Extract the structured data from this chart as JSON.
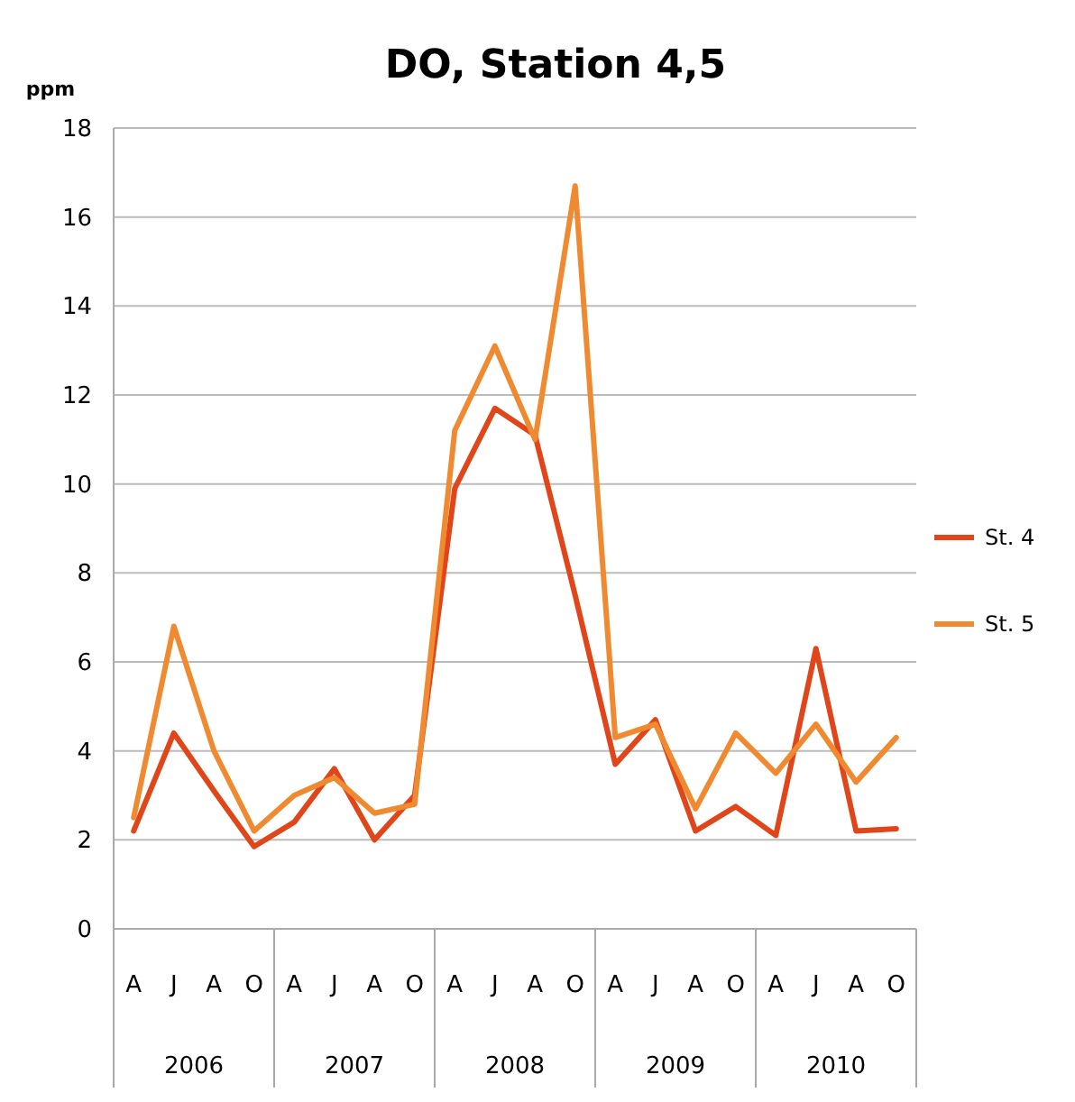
{
  "chart_data": {
    "type": "line",
    "title": "DO, Station 4,5",
    "ylabel": "ppm",
    "categories": [
      "A",
      "J",
      "A",
      "O",
      "A",
      "J",
      "A",
      "O",
      "A",
      "J",
      "A",
      "O",
      "A",
      "J",
      "A",
      "O",
      "A",
      "J",
      "A",
      "O"
    ],
    "annotations": [
      "2006",
      "2007",
      "2008",
      "2009",
      "2010"
    ],
    "series": [
      {
        "name": "St. 4",
        "color": "#e0461a",
        "values": [
          2.2,
          4.4,
          3.1,
          1.85,
          2.4,
          3.6,
          2.0,
          3.0,
          9.9,
          11.7,
          11.1,
          7.5,
          3.7,
          4.7,
          2.2,
          2.75,
          2.1,
          6.3,
          2.2,
          2.25
        ]
      },
      {
        "name": "St. 5",
        "color": "#f08a30",
        "values": [
          2.5,
          6.8,
          4.0,
          2.2,
          3.0,
          3.4,
          2.6,
          2.8,
          11.2,
          13.1,
          11.0,
          16.7,
          4.3,
          4.6,
          2.7,
          4.4,
          3.5,
          4.6,
          3.3,
          4.3
        ]
      }
    ],
    "ylim": [
      0,
      18
    ],
    "yticks": [
      0,
      2,
      4,
      6,
      8,
      10,
      12,
      14,
      16,
      18
    ],
    "grid": "y",
    "legend": "right",
    "marker": "none",
    "line_style": "solid"
  }
}
